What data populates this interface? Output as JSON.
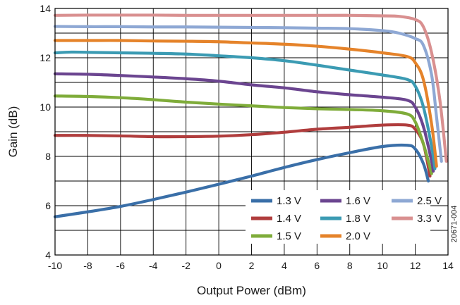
{
  "chart_data": {
    "type": "line",
    "title": "",
    "xlabel": "Output Power (dBm)",
    "ylabel": "Gain (dB)",
    "xlim": [
      -10,
      14
    ],
    "ylim": [
      4,
      14
    ],
    "x_ticks": [
      -10,
      -8,
      -6,
      -4,
      -2,
      0,
      2,
      4,
      6,
      8,
      10,
      12,
      14
    ],
    "y_ticks": [
      4,
      6,
      8,
      10,
      12,
      14
    ],
    "x_tick_labels": [
      "-10",
      "-8",
      "-6",
      "-4",
      "-2",
      "0",
      "2",
      "4",
      "6",
      "8",
      "10",
      "12",
      "14"
    ],
    "y_tick_labels": [
      "4",
      "6",
      "8",
      "10",
      "12",
      "14"
    ],
    "grid": true,
    "legend_position": "lower-right",
    "figure_id": "20671-004",
    "series": [
      {
        "name": "1.3 V",
        "color": "#3a6fa8",
        "x": [
          -10,
          -8,
          -6,
          -4,
          -2,
          0,
          2,
          4,
          6,
          8,
          10,
          11.5,
          12,
          12.5,
          12.8
        ],
        "y": [
          5.55,
          5.75,
          5.97,
          6.25,
          6.55,
          6.87,
          7.2,
          7.55,
          7.87,
          8.15,
          8.4,
          8.45,
          8.3,
          7.7,
          7.0
        ]
      },
      {
        "name": "1.4 V",
        "color": "#b03d3d",
        "x": [
          -10,
          -8,
          -6,
          -4,
          -2,
          0,
          2,
          4,
          6,
          8,
          10,
          11.5,
          12,
          12.5,
          12.9
        ],
        "y": [
          8.85,
          8.85,
          8.83,
          8.8,
          8.8,
          8.82,
          8.88,
          8.98,
          9.1,
          9.18,
          9.27,
          9.27,
          9.1,
          8.5,
          7.2
        ]
      },
      {
        "name": "1.5 V",
        "color": "#7fac3a",
        "x": [
          -10,
          -8,
          -6,
          -4,
          -2,
          0,
          2,
          4,
          6,
          8,
          10,
          11.5,
          12,
          12.5,
          13.0
        ],
        "y": [
          10.45,
          10.43,
          10.38,
          10.3,
          10.2,
          10.12,
          10.05,
          9.98,
          9.93,
          9.9,
          9.85,
          9.72,
          9.4,
          8.5,
          7.3
        ]
      },
      {
        "name": "1.6 V",
        "color": "#6b4590",
        "x": [
          -10,
          -8,
          -6,
          -4,
          -2,
          0,
          2,
          4,
          6,
          8,
          10,
          11.5,
          12,
          12.5,
          13.0,
          13.1
        ],
        "y": [
          11.35,
          11.33,
          11.28,
          11.22,
          11.15,
          11.05,
          10.9,
          10.78,
          10.62,
          10.5,
          10.4,
          10.28,
          10.0,
          9.2,
          7.8,
          7.4
        ]
      },
      {
        "name": "1.8 V",
        "color": "#3b9bb3",
        "x": [
          -10,
          -9,
          -8,
          -6,
          -4,
          -2,
          0,
          2,
          4,
          6,
          8,
          10,
          11.5,
          12,
          12.5,
          13.0,
          13.2
        ],
        "y": [
          12.2,
          12.23,
          12.22,
          12.2,
          12.18,
          12.15,
          12.08,
          12.0,
          11.88,
          11.7,
          11.5,
          11.3,
          11.12,
          10.85,
          10.0,
          8.4,
          7.5
        ]
      },
      {
        "name": "2.0 V",
        "color": "#e5832a",
        "x": [
          -10,
          -8,
          -6,
          -4,
          -2,
          0,
          2,
          4,
          6,
          8,
          10,
          11.5,
          12,
          12.5,
          13.0,
          13.3
        ],
        "y": [
          12.7,
          12.7,
          12.7,
          12.68,
          12.67,
          12.65,
          12.6,
          12.55,
          12.47,
          12.35,
          12.2,
          12.05,
          11.8,
          11.1,
          9.3,
          7.6
        ]
      },
      {
        "name": "2.5 V",
        "color": "#8ea8d4",
        "x": [
          -10,
          -8,
          -6,
          -4,
          -2,
          0,
          2,
          4,
          6,
          8,
          10,
          11,
          12,
          12.5,
          13.0,
          13.3,
          13.6
        ],
        "y": [
          13.27,
          13.26,
          13.26,
          13.25,
          13.25,
          13.24,
          13.23,
          13.22,
          13.2,
          13.18,
          13.1,
          13.0,
          12.78,
          12.5,
          11.3,
          9.6,
          7.8
        ]
      },
      {
        "name": "3.3 V",
        "color": "#d99090",
        "x": [
          -10,
          -8,
          -6,
          -4,
          -2,
          0,
          2,
          4,
          6,
          8,
          10,
          11,
          12,
          12.5,
          13.0,
          13.5,
          13.9
        ],
        "y": [
          13.72,
          13.73,
          13.73,
          13.73,
          13.72,
          13.72,
          13.72,
          13.72,
          13.72,
          13.72,
          13.7,
          13.68,
          13.55,
          13.25,
          12.2,
          10.3,
          7.8
        ]
      }
    ]
  }
}
